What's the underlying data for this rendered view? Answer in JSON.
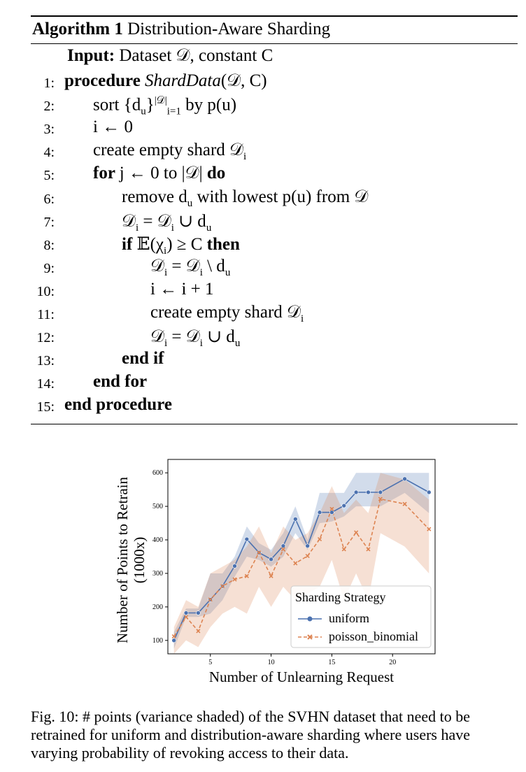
{
  "algorithm": {
    "label": "Algorithm 1",
    "title": "Distribution-Aware Sharding",
    "input_kw": "Input:",
    "input_text": "Dataset 𝒟, constant C",
    "lines": [
      {
        "n": "1:",
        "indent": 0,
        "parts": [
          {
            "t": "procedure ",
            "c": "kw"
          },
          {
            "t": "ShardData",
            "c": "it"
          },
          {
            "t": "(𝒟, C)",
            "c": ""
          }
        ]
      },
      {
        "n": "2:",
        "indent": 1,
        "parts": [
          {
            "t": "sort {d",
            "c": ""
          },
          {
            "t": "u",
            "c": "sub"
          },
          {
            "t": "}",
            "c": ""
          },
          {
            "t": "|𝒟|",
            "c": "sup"
          },
          {
            "t": "i=1",
            "c": "sub"
          },
          {
            "t": " by p(u)",
            "c": ""
          }
        ]
      },
      {
        "n": "3:",
        "indent": 1,
        "parts": [
          {
            "t": "i ← 0",
            "c": ""
          }
        ]
      },
      {
        "n": "4:",
        "indent": 1,
        "parts": [
          {
            "t": "create empty shard 𝒟",
            "c": ""
          },
          {
            "t": "i",
            "c": "sub"
          }
        ]
      },
      {
        "n": "5:",
        "indent": 1,
        "parts": [
          {
            "t": "for ",
            "c": "kw"
          },
          {
            "t": "j ← 0 to |𝒟| ",
            "c": ""
          },
          {
            "t": "do",
            "c": "kw"
          }
        ]
      },
      {
        "n": "6:",
        "indent": 2,
        "parts": [
          {
            "t": "remove d",
            "c": ""
          },
          {
            "t": "u",
            "c": "sub"
          },
          {
            "t": " with lowest p(u) from 𝒟",
            "c": ""
          }
        ]
      },
      {
        "n": "7:",
        "indent": 2,
        "parts": [
          {
            "t": "𝒟",
            "c": ""
          },
          {
            "t": "i",
            "c": "sub"
          },
          {
            "t": " = 𝒟",
            "c": ""
          },
          {
            "t": "i",
            "c": "sub"
          },
          {
            "t": " ∪ d",
            "c": ""
          },
          {
            "t": "u",
            "c": "sub"
          }
        ]
      },
      {
        "n": "8:",
        "indent": 2,
        "parts": [
          {
            "t": "if ",
            "c": "kw"
          },
          {
            "t": "𝔼(χ",
            "c": ""
          },
          {
            "t": "i",
            "c": "sub"
          },
          {
            "t": ") ≥ C ",
            "c": ""
          },
          {
            "t": "then",
            "c": "kw"
          }
        ]
      },
      {
        "n": "9:",
        "indent": 3,
        "parts": [
          {
            "t": "𝒟",
            "c": ""
          },
          {
            "t": "i",
            "c": "sub"
          },
          {
            "t": " = 𝒟",
            "c": ""
          },
          {
            "t": "i",
            "c": "sub"
          },
          {
            "t": " \\ d",
            "c": ""
          },
          {
            "t": "u",
            "c": "sub"
          }
        ]
      },
      {
        "n": "10:",
        "indent": 3,
        "parts": [
          {
            "t": "i ← i + 1",
            "c": ""
          }
        ]
      },
      {
        "n": "11:",
        "indent": 3,
        "parts": [
          {
            "t": "create empty shard 𝒟",
            "c": ""
          },
          {
            "t": "i",
            "c": "sub"
          }
        ]
      },
      {
        "n": "12:",
        "indent": 3,
        "parts": [
          {
            "t": "𝒟",
            "c": ""
          },
          {
            "t": "i",
            "c": "sub"
          },
          {
            "t": " = 𝒟",
            "c": ""
          },
          {
            "t": "i",
            "c": "sub"
          },
          {
            "t": " ∪ d",
            "c": ""
          },
          {
            "t": "u",
            "c": "sub"
          }
        ]
      },
      {
        "n": "13:",
        "indent": 2,
        "parts": [
          {
            "t": "end if",
            "c": "kw"
          }
        ]
      },
      {
        "n": "14:",
        "indent": 1,
        "parts": [
          {
            "t": "end for",
            "c": "kw"
          }
        ]
      },
      {
        "n": "15:",
        "indent": 0,
        "parts": [
          {
            "t": "end procedure",
            "c": "kw"
          }
        ]
      }
    ]
  },
  "chart_data": {
    "type": "line",
    "xlabel": "Number of Unlearning Request",
    "ylabel": "Number of Points to Retrain (1000x)",
    "xlim": [
      1.5,
      23.5
    ],
    "ylim": [
      60,
      640
    ],
    "xticks": [
      5,
      10,
      15,
      20
    ],
    "yticks": [
      100,
      200,
      300,
      400,
      500,
      600
    ],
    "grid": false,
    "legend": {
      "title": "Sharding Strategy",
      "placement": "lower right"
    },
    "x": [
      2,
      3,
      4,
      5,
      6,
      7,
      8,
      9,
      10,
      11,
      12,
      13,
      14,
      15,
      16,
      17,
      18,
      19,
      21,
      23
    ],
    "series": [
      {
        "name": "uniform",
        "color": "#4c72b0",
        "marker": "circle",
        "linestyle": "solid",
        "values": [
          100,
          182,
          182,
          222,
          262,
          322,
          402,
          362,
          342,
          382,
          462,
          382,
          482,
          482,
          502,
          542,
          542,
          542,
          582,
          542
        ],
        "band_low": [
          75,
          170,
          170,
          180,
          220,
          290,
          350,
          340,
          320,
          350,
          420,
          370,
          450,
          455,
          470,
          500,
          500,
          500,
          540,
          480
        ],
        "band_high": [
          125,
          195,
          195,
          300,
          300,
          350,
          440,
          390,
          370,
          420,
          500,
          400,
          540,
          540,
          540,
          600,
          600,
          600,
          600,
          600
        ]
      },
      {
        "name": "poisson_binomial",
        "color": "#dd8452",
        "marker": "x",
        "linestyle": "dashed",
        "values": [
          112,
          170,
          128,
          222,
          262,
          282,
          292,
          362,
          292,
          372,
          330,
          352,
          402,
          492,
          372,
          422,
          372,
          522,
          507,
          432
        ],
        "band_low": [
          60,
          100,
          80,
          140,
          180,
          200,
          180,
          260,
          200,
          260,
          220,
          240,
          260,
          340,
          220,
          300,
          220,
          420,
          380,
          300
        ],
        "band_high": [
          140,
          220,
          200,
          300,
          320,
          340,
          380,
          440,
          360,
          440,
          400,
          420,
          480,
          560,
          480,
          520,
          480,
          600,
          580,
          520
        ]
      }
    ]
  },
  "caption": "Fig. 10: # points (variance shaded) of the SVHN dataset that need to be retrained for uniform and distribution-aware sharding where users have varying probability of revoking access to their data."
}
